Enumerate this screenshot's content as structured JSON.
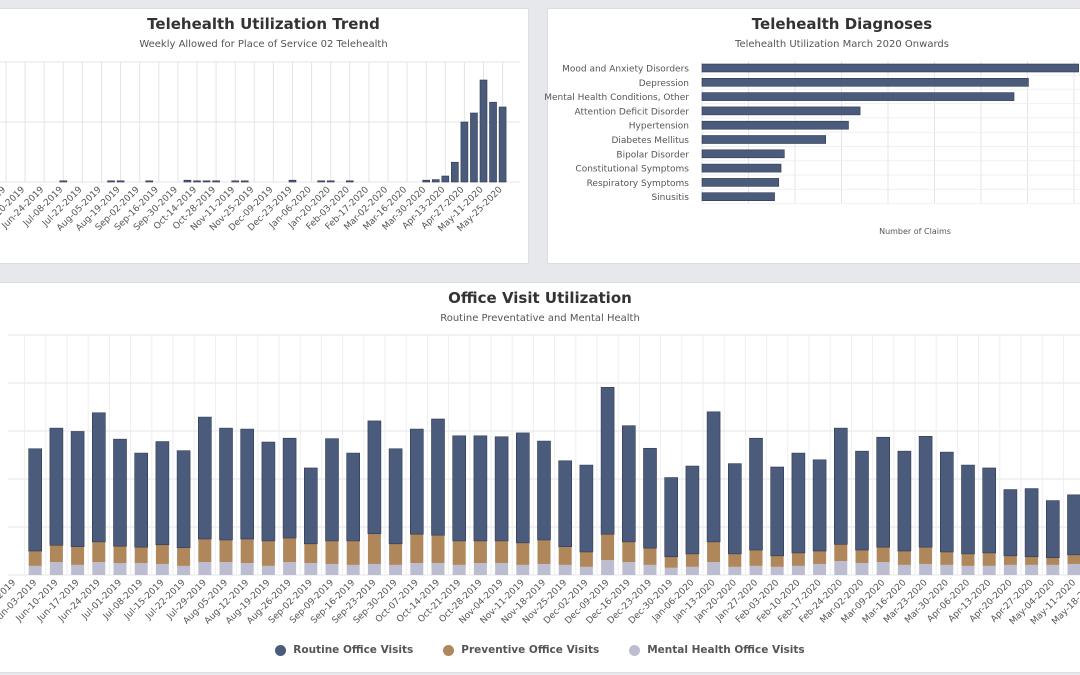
{
  "colors": {
    "routine": "#4b5b7c",
    "preventive": "#b0875a",
    "mental": "#bdbdd2",
    "bar_border": "#2f3a52",
    "grid": "#e4e4e8",
    "background": "#e6e8ec"
  },
  "chart_data": [
    {
      "id": "trend",
      "type": "bar",
      "title": "Telehealth Utilization Trend",
      "subtitle": "Weekly Allowed for Place of Service 02 Telehealth",
      "ylim": [
        0,
        200
      ],
      "grid": true,
      "tick_labels": [
        "May-27-2019",
        "Jun-10-2019",
        "Jun-24-2019",
        "Jul-08-2019",
        "Jul-22-2019",
        "Aug-05-2019",
        "Aug-19-2019",
        "Sep-02-2019",
        "Sep-16-2019",
        "Sep-30-2019",
        "Oct-14-2019",
        "Oct-28-2019",
        "Nov-11-2019",
        "Nov-25-2019",
        "Dec-09-2019",
        "Dec-23-2019",
        "Jan-06-2020",
        "Jan-20-2020",
        "Feb-03-2020",
        "Feb-17-2020",
        "Mar-02-2020",
        "Mar-16-2020",
        "Mar-30-2020",
        "Apr-13-2020",
        "Apr-27-2020",
        "May-11-2020",
        "May-25-2020"
      ],
      "values": [
        0,
        0,
        0,
        0,
        0,
        0,
        2,
        0,
        0,
        0,
        0,
        2,
        2,
        0,
        0,
        2,
        0,
        0,
        0,
        3,
        2,
        2,
        2,
        0,
        2,
        2,
        0,
        0,
        0,
        0,
        3,
        0,
        0,
        2,
        2,
        0,
        2,
        0,
        0,
        0,
        0,
        0,
        0,
        0,
        3,
        4,
        10,
        33,
        100,
        115,
        170,
        133,
        125
      ]
    },
    {
      "id": "diagnoses",
      "type": "bar",
      "orientation": "horizontal",
      "title": "Telehealth Diagnoses",
      "subtitle": "Telehealth Utilization March 2020 Onwards",
      "xlabel": "Number of Claims",
      "grid": true,
      "categories": [
        "Mood and Anxiety Disorders",
        "Depression",
        "Mental Health Conditions, Other",
        "Attention Deficit Disorder",
        "Hypertension",
        "Diabetes Mellitus",
        "Bipolar Disorder",
        "Constitutional Symptoms",
        "Respiratory Symptoms",
        "Sinusitis"
      ],
      "values": [
        810,
        702,
        671,
        340,
        315,
        266,
        177,
        170,
        165,
        156
      ]
    },
    {
      "id": "office",
      "type": "bar",
      "stacked": true,
      "title": "Office Visit Utilization",
      "subtitle": "Routine Preventative and Mental Health",
      "ylim": [
        0,
        500
      ],
      "grid": true,
      "legend": "bottom",
      "categories": [
        "May-27-2019",
        "Jun-03-2019",
        "Jun-10-2019",
        "Jun-17-2019",
        "Jun-24-2019",
        "Jul-01-2019",
        "Jul-08-2019",
        "Jul-15-2019",
        "Jul-22-2019",
        "Jul-29-2019",
        "Aug-05-2019",
        "Aug-12-2019",
        "Aug-19-2019",
        "Aug-26-2019",
        "Sep-02-2019",
        "Sep-09-2019",
        "Sep-16-2019",
        "Sep-23-2019",
        "Sep-30-2019",
        "Oct-07-2019",
        "Oct-14-2019",
        "Oct-21-2019",
        "Oct-28-2019",
        "Nov-04-2019",
        "Nov-11-2019",
        "Nov-18-2019",
        "Nov-25-2019",
        "Dec-02-2019",
        "Dec-09-2019",
        "Dec-16-2019",
        "Dec-23-2019",
        "Dec-30-2019",
        "Jan-06-2020",
        "Jan-13-2020",
        "Jan-20-2020",
        "Jan-27-2020",
        "Feb-03-2020",
        "Feb-10-2020",
        "Feb-17-2020",
        "Feb-24-2020",
        "Mar-02-2020",
        "Mar-09-2020",
        "Mar-16-2020",
        "Mar-23-2020",
        "Mar-30-2020",
        "Apr-06-2020",
        "Apr-13-2020",
        "Apr-20-2020",
        "Apr-27-2020",
        "May-04-2020",
        "May-11-2020",
        "May-18-2020"
      ],
      "series": [
        {
          "name": "Mental Health Office Visits",
          "color": "#bdbdd2",
          "values": [
            null,
            19,
            27,
            21,
            27,
            25,
            25,
            23,
            19,
            27,
            27,
            25,
            19,
            27,
            25,
            23,
            21,
            23,
            21,
            25,
            25,
            21,
            25,
            25,
            21,
            23,
            21,
            17,
            31,
            27,
            21,
            15,
            17,
            27,
            17,
            19,
            17,
            19,
            23,
            29,
            25,
            27,
            21,
            23,
            21,
            19,
            19,
            21,
            21,
            21,
            23,
            null
          ]
        },
        {
          "name": "Preventive Office Visits",
          "color": "#b0875a",
          "values": [
            null,
            31,
            35,
            38,
            42,
            35,
            33,
            40,
            38,
            48,
            46,
            50,
            52,
            50,
            40,
            48,
            50,
            63,
            44,
            60,
            58,
            50,
            46,
            46,
            46,
            50,
            38,
            31,
            54,
            42,
            35,
            23,
            27,
            42,
            27,
            33,
            23,
            27,
            27,
            35,
            27,
            31,
            29,
            35,
            27,
            25,
            27,
            19,
            17,
            15,
            19,
            null
          ]
        },
        {
          "name": "Routine Office Visits",
          "color": "#4b5b7c",
          "values": [
            null,
            213,
            244,
            240,
            269,
            223,
            196,
            215,
            202,
            254,
            233,
            229,
            206,
            208,
            158,
            213,
            183,
            235,
            198,
            219,
            242,
            219,
            219,
            217,
            229,
            206,
            179,
            181,
            306,
            242,
            208,
            165,
            183,
            271,
            188,
            233,
            185,
            208,
            190,
            242,
            206,
            229,
            208,
            231,
            208,
            185,
            177,
            138,
            142,
            119,
            125,
            null
          ]
        }
      ]
    }
  ],
  "legend": [
    {
      "label": "Routine Office Visits",
      "color": "#4b5b7c"
    },
    {
      "label": "Preventive Office Visits",
      "color": "#b0875a"
    },
    {
      "label": "Mental Health Office Visits",
      "color": "#bdbdd2"
    }
  ]
}
